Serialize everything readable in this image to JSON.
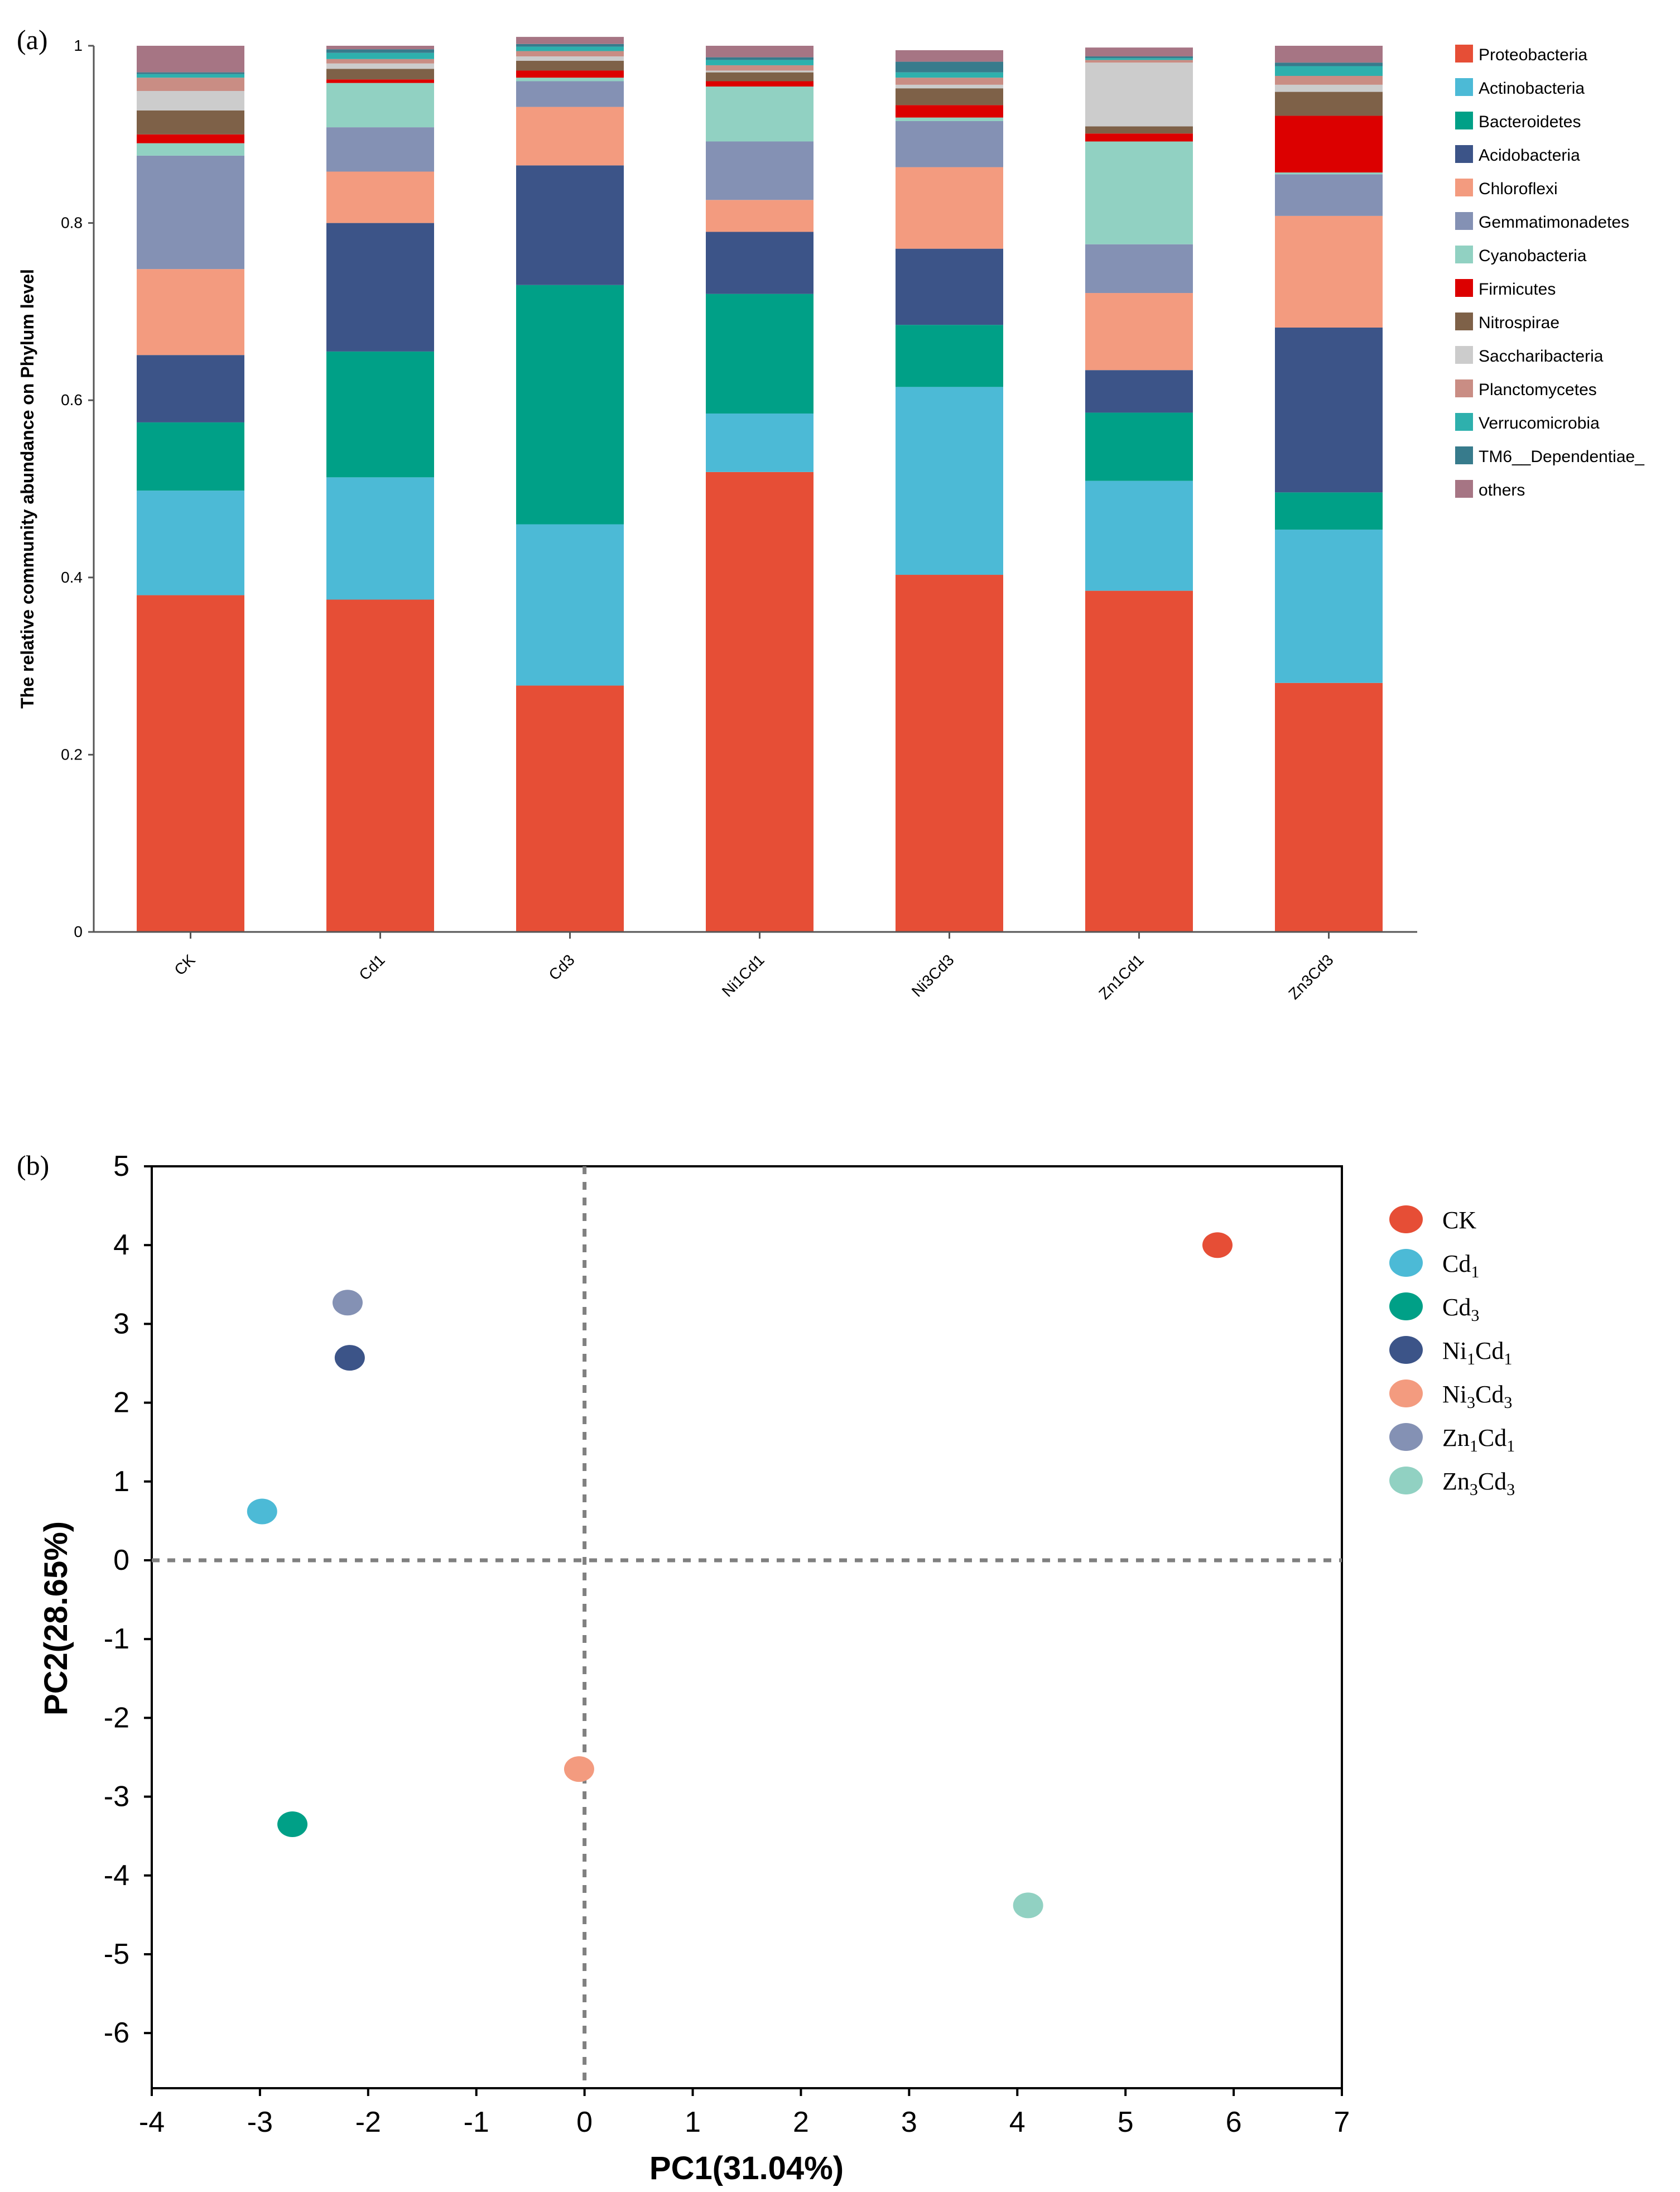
{
  "chart_data": [
    {
      "panel_label": "(a)",
      "type": "bar",
      "stacked": true,
      "ylabel": "The relative community abundance on Phylum level",
      "ylim": [
        0,
        1
      ],
      "yticks": [
        0,
        0.2,
        0.4,
        0.6,
        0.8,
        1
      ],
      "ytick_labels": [
        "0",
        "0.2",
        "0.4",
        "0.6",
        "0.8",
        "1"
      ],
      "categories": [
        "CK",
        "Cd1",
        "Cd3",
        "Ni1Cd1",
        "Ni3Cd3",
        "Zn1Cd1",
        "Zn3Cd3"
      ],
      "legend_position": "right",
      "series": [
        {
          "name": "Proteobacteria",
          "color": "#E64E36",
          "values": [
            0.38,
            0.375,
            0.278,
            0.519,
            0.403,
            0.385,
            0.281
          ]
        },
        {
          "name": "Actinobacteria",
          "color": "#4CBAD6",
          "values": [
            0.118,
            0.138,
            0.182,
            0.066,
            0.212,
            0.124,
            0.173
          ]
        },
        {
          "name": "Bacteroidetes",
          "color": "#00A087",
          "values": [
            0.077,
            0.142,
            0.27,
            0.135,
            0.07,
            0.077,
            0.042
          ]
        },
        {
          "name": "Acidobacteria",
          "color": "#3C5488",
          "values": [
            0.076,
            0.145,
            0.135,
            0.07,
            0.086,
            0.048,
            0.186
          ]
        },
        {
          "name": "Chloroflexi",
          "color": "#F39B7F",
          "values": [
            0.097,
            0.058,
            0.066,
            0.036,
            0.092,
            0.087,
            0.126
          ]
        },
        {
          "name": "Gemmatimonadetes",
          "color": "#8491B4",
          "values": [
            0.128,
            0.05,
            0.029,
            0.066,
            0.052,
            0.055,
            0.047
          ]
        },
        {
          "name": "Cyanobacteria",
          "color": "#91D1C2",
          "values": [
            0.014,
            0.05,
            0.004,
            0.062,
            0.004,
            0.116,
            0.002
          ]
        },
        {
          "name": "Firmicutes",
          "color": "#DC0000",
          "values": [
            0.01,
            0.004,
            0.008,
            0.006,
            0.014,
            0.009,
            0.064
          ]
        },
        {
          "name": "Nitrospirae",
          "color": "#7E6148",
          "values": [
            0.027,
            0.012,
            0.011,
            0.01,
            0.019,
            0.008,
            0.027
          ]
        },
        {
          "name": "Saccharibacteria",
          "color": "#CCCCCC",
          "values": [
            0.022,
            0.006,
            0.005,
            0.002,
            0.004,
            0.072,
            0.008
          ]
        },
        {
          "name": "Planctomycetes",
          "color": "#C98D84",
          "values": [
            0.015,
            0.005,
            0.006,
            0.006,
            0.008,
            0.003,
            0.01
          ]
        },
        {
          "name": "Verrucomicrobia",
          "color": "#2EB0AD",
          "values": [
            0.004,
            0.007,
            0.005,
            0.006,
            0.006,
            0.002,
            0.011
          ]
        },
        {
          "name": "TM6__Dependentiae_",
          "color": "#377B8C",
          "values": [
            0.002,
            0.004,
            0.003,
            0.003,
            0.012,
            0.002,
            0.004
          ]
        },
        {
          "name": "others",
          "color": "#A67584",
          "values": [
            0.03,
            0.004,
            0.008,
            0.013,
            0.013,
            0.01,
            0.019
          ]
        }
      ]
    },
    {
      "panel_label": "(b)",
      "type": "scatter",
      "xlabel": "PC1(31.04%)",
      "ylabel": "PC2(28.65%)",
      "xlim": [
        -4,
        7
      ],
      "ylim": [
        -6.7,
        5
      ],
      "xticks": [
        -4,
        -3,
        -2,
        -1,
        0,
        1,
        2,
        3,
        4,
        5,
        6,
        7
      ],
      "yticks": [
        5,
        4,
        3,
        2,
        1,
        0,
        -1,
        -2,
        -3,
        -4,
        -5,
        -6
      ],
      "reference_lines": {
        "x": 0,
        "y": 0,
        "style": "dashed"
      },
      "legend_position": "top-right",
      "points": [
        {
          "name": "CK",
          "label_base": "CK",
          "label_sub1": "",
          "label_mid": "",
          "label_sub2": "",
          "color": "#E64E36",
          "x": 5.85,
          "y": 4.0
        },
        {
          "name": "Cd1",
          "label_base": "Cd",
          "label_sub1": "1",
          "label_mid": "",
          "label_sub2": "",
          "color": "#4CBAD6",
          "x": -2.98,
          "y": 0.62
        },
        {
          "name": "Cd3",
          "label_base": "Cd",
          "label_sub1": "3",
          "label_mid": "",
          "label_sub2": "",
          "color": "#00A087",
          "x": -2.7,
          "y": -3.35
        },
        {
          "name": "Ni1Cd1",
          "label_base": "Ni",
          "label_sub1": "1",
          "label_mid": "Cd",
          "label_sub2": "1",
          "color": "#3C5488",
          "x": -2.17,
          "y": 2.57
        },
        {
          "name": "Ni3Cd3",
          "label_base": "Ni",
          "label_sub1": "3",
          "label_mid": "Cd",
          "label_sub2": "3",
          "color": "#F39B7F",
          "x": -0.05,
          "y": -2.65
        },
        {
          "name": "Zn1Cd1",
          "label_base": "Zn",
          "label_sub1": "1",
          "label_mid": "Cd",
          "label_sub2": "1",
          "color": "#8491B4",
          "x": -2.19,
          "y": 3.27
        },
        {
          "name": "Zn3Cd3",
          "label_base": "Zn",
          "label_sub1": "3",
          "label_mid": "Cd",
          "label_sub2": "3",
          "color": "#91D1C2",
          "x": 4.1,
          "y": -4.38
        }
      ]
    }
  ]
}
